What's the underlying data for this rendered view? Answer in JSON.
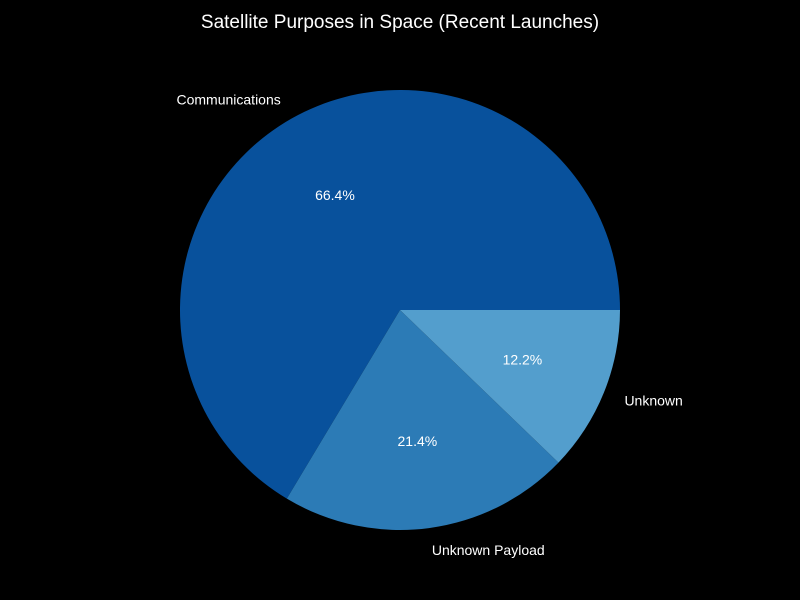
{
  "chart_data": {
    "type": "pie",
    "title": "Satellite Purposes in Space (Recent Launches)",
    "categories": [
      "Communications",
      "Unknown Payload",
      "Unknown"
    ],
    "values": [
      66.4,
      21.4,
      12.2
    ],
    "percent_labels": [
      "66.4%",
      "21.4%",
      "12.2%"
    ],
    "colors": [
      "#08519c",
      "#2c7bb6",
      "#539ecd"
    ],
    "start_angle_deg": 0,
    "direction": "counterclockwise",
    "background": "#000000",
    "text_color": "#ffffff"
  }
}
